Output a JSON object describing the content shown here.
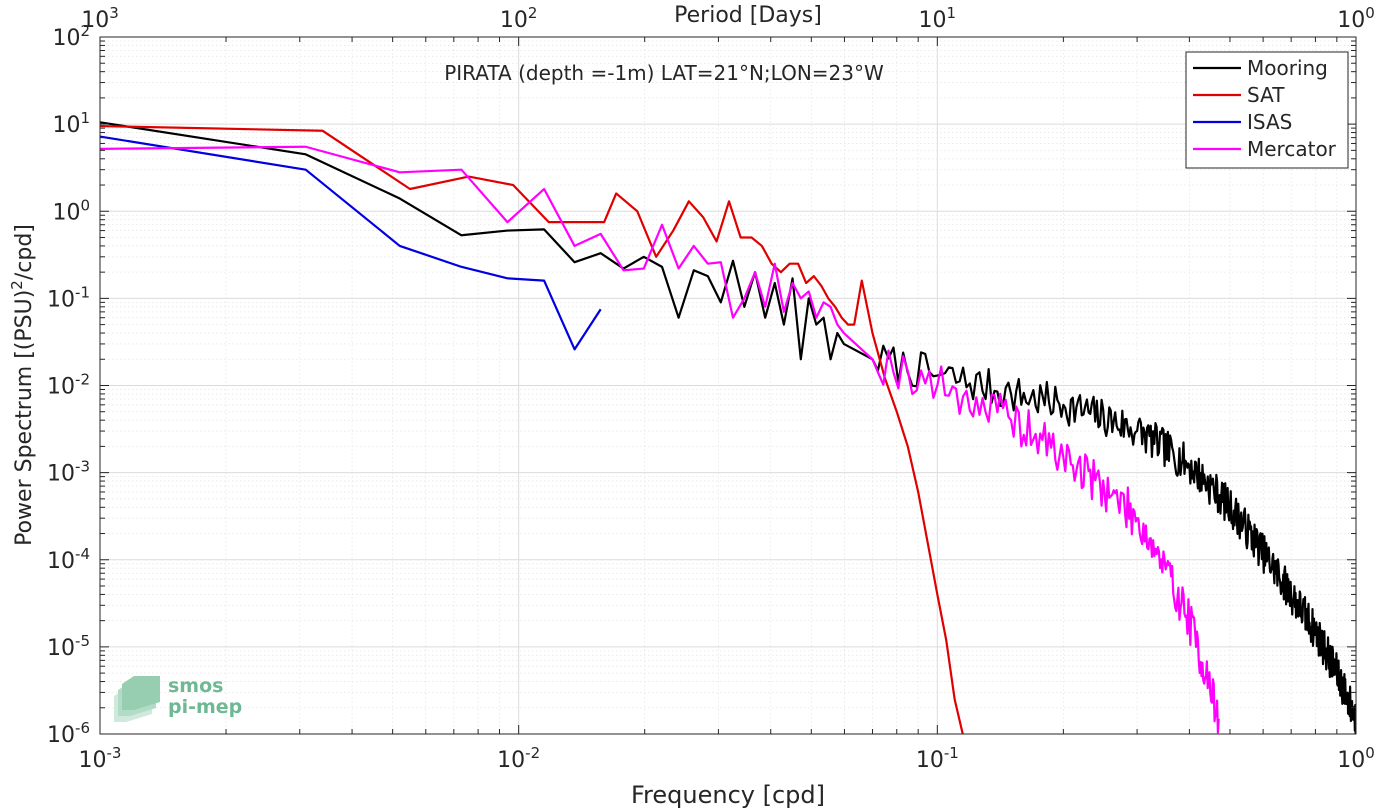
{
  "chart_data": {
    "type": "line",
    "title": "PIRATA (depth =-1m) LAT=21°N;LON=23°W",
    "xlabel": "Frequency [cpd]",
    "ylabel": "Power Spectrum [(PSU)",
    "ylabel_sup": "2",
    "ylabel_tail": "/cpd]",
    "top_xlabel": "Period [Days]",
    "xscale": "log",
    "yscale": "log",
    "xlim": [
      0.001,
      1
    ],
    "ylim": [
      1e-06,
      100
    ],
    "grid": "major and minor",
    "legend_position": "top-right",
    "x_ticks": [
      {
        "value": 0.001,
        "base": "10",
        "exp": "-3"
      },
      {
        "value": 0.01,
        "base": "10",
        "exp": "-2"
      },
      {
        "value": 0.1,
        "base": "10",
        "exp": "-1"
      },
      {
        "value": 1,
        "base": "10",
        "exp": "0"
      }
    ],
    "top_ticks": [
      {
        "freq": 0.001,
        "base": "10",
        "exp": "3"
      },
      {
        "freq": 0.01,
        "base": "10",
        "exp": "2"
      },
      {
        "freq": 0.1,
        "base": "10",
        "exp": "1"
      },
      {
        "freq": 1,
        "base": "10",
        "exp": "0"
      }
    ],
    "y_ticks": [
      {
        "value": 100,
        "base": "10",
        "exp": "2"
      },
      {
        "value": 10,
        "base": "10",
        "exp": "1"
      },
      {
        "value": 1,
        "base": "10",
        "exp": "0"
      },
      {
        "value": 0.1,
        "base": "10",
        "exp": "-1"
      },
      {
        "value": 0.01,
        "base": "10",
        "exp": "-2"
      },
      {
        "value": 0.001,
        "base": "10",
        "exp": "-3"
      },
      {
        "value": 0.0001,
        "base": "10",
        "exp": "-4"
      },
      {
        "value": 1e-05,
        "base": "10",
        "exp": "-5"
      },
      {
        "value": 1e-06,
        "base": "10",
        "exp": "-6"
      }
    ],
    "series": [
      {
        "name": "Mooring",
        "color": "#000000",
        "noise": {
          "from": 0.06,
          "amplitude": 0.22,
          "seed": 7
        },
        "x": [
          0.001,
          0.0031,
          0.0052,
          0.0073,
          0.0094,
          0.0115,
          0.0136,
          0.0157,
          0.0178,
          0.0199,
          0.022,
          0.0241,
          0.0262,
          0.0283,
          0.0304,
          0.0325,
          0.0346,
          0.0367,
          0.0388,
          0.0409,
          0.043,
          0.0451,
          0.0472,
          0.0493,
          0.0514,
          0.0535,
          0.0556,
          0.0577,
          0.0598,
          0.07,
          0.1,
          0.15,
          0.2,
          0.3,
          0.4,
          0.5,
          0.6,
          0.7,
          0.8,
          0.9,
          1.0
        ],
        "y": [
          10.5,
          4.5,
          1.4,
          0.53,
          0.6,
          0.62,
          0.26,
          0.33,
          0.22,
          0.3,
          0.23,
          0.06,
          0.21,
          0.18,
          0.09,
          0.27,
          0.08,
          0.2,
          0.06,
          0.15,
          0.05,
          0.17,
          0.02,
          0.1,
          0.05,
          0.06,
          0.02,
          0.04,
          0.03,
          0.02,
          0.013,
          0.008,
          0.006,
          0.003,
          0.0012,
          0.0004,
          0.00012,
          4e-05,
          1.5e-05,
          5e-06,
          1.5e-06
        ]
      },
      {
        "name": "SAT",
        "color": "#e00000",
        "noise": {
          "from": 0,
          "amplitude": 0,
          "seed": 0
        },
        "x": [
          0.001,
          0.0034,
          0.0055,
          0.0076,
          0.0097,
          0.0118,
          0.0139,
          0.016,
          0.0171,
          0.0192,
          0.0213,
          0.0234,
          0.0255,
          0.0276,
          0.0297,
          0.0318,
          0.0339,
          0.036,
          0.0381,
          0.0402,
          0.0423,
          0.0444,
          0.0465,
          0.0486,
          0.0507,
          0.0528,
          0.0549,
          0.057,
          0.0591,
          0.0612,
          0.0633,
          0.066,
          0.07,
          0.075,
          0.08,
          0.085,
          0.09,
          0.095,
          0.1,
          0.105,
          0.11,
          0.115
        ],
        "y": [
          9.5,
          8.4,
          1.8,
          2.5,
          2.0,
          0.75,
          0.75,
          0.75,
          1.6,
          1.0,
          0.3,
          0.6,
          1.3,
          0.85,
          0.45,
          1.3,
          0.5,
          0.5,
          0.4,
          0.25,
          0.2,
          0.25,
          0.25,
          0.15,
          0.18,
          0.14,
          0.1,
          0.08,
          0.06,
          0.05,
          0.05,
          0.16,
          0.04,
          0.012,
          0.005,
          0.002,
          0.0006,
          0.00015,
          4e-05,
          1.2e-05,
          2.5e-06,
          1e-06
        ]
      },
      {
        "name": "ISAS",
        "color": "#0000e0",
        "noise": {
          "from": 0,
          "amplitude": 0,
          "seed": 0
        },
        "x": [
          0.001,
          0.0031,
          0.0052,
          0.0073,
          0.0094,
          0.0115,
          0.0136,
          0.0157
        ],
        "y": [
          7.2,
          3.0,
          0.4,
          0.23,
          0.17,
          0.16,
          0.026,
          0.075
        ]
      },
      {
        "name": "Mercator",
        "color": "#ff00ff",
        "noise": {
          "from": 0.06,
          "amplitude": 0.25,
          "seed": 19
        },
        "x": [
          0.001,
          0.0031,
          0.0052,
          0.0073,
          0.0094,
          0.0115,
          0.0136,
          0.0157,
          0.0178,
          0.0199,
          0.022,
          0.0241,
          0.0262,
          0.0283,
          0.0304,
          0.0325,
          0.0346,
          0.0367,
          0.0388,
          0.0409,
          0.043,
          0.0451,
          0.0472,
          0.0493,
          0.0514,
          0.0535,
          0.0556,
          0.0577,
          0.0598,
          0.07,
          0.1,
          0.15,
          0.2,
          0.3,
          0.4,
          0.47
        ],
        "y": [
          5.2,
          5.5,
          2.8,
          3.0,
          0.75,
          1.8,
          0.4,
          0.55,
          0.21,
          0.22,
          0.7,
          0.22,
          0.4,
          0.25,
          0.26,
          0.06,
          0.1,
          0.2,
          0.08,
          0.25,
          0.07,
          0.15,
          0.1,
          0.12,
          0.06,
          0.09,
          0.08,
          0.05,
          0.04,
          0.02,
          0.01,
          0.004,
          0.0015,
          0.0003,
          2e-05,
          1.5e-06
        ]
      }
    ]
  },
  "logo": {
    "line1": "smos",
    "line2": "pi-mep",
    "color": "#6fb894"
  }
}
